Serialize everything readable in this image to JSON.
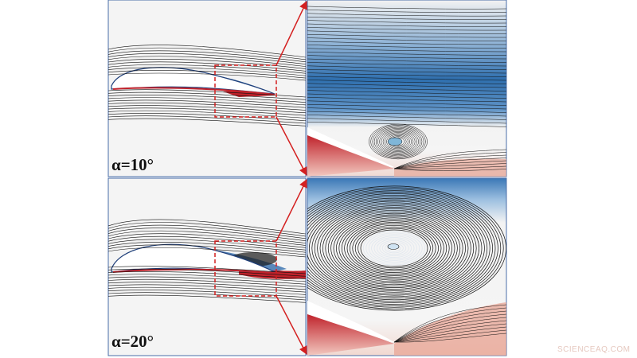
{
  "panels": [
    {
      "label": "α=10°"
    },
    {
      "label": "α=20°"
    }
  ],
  "watermark": "SCIENCEAQ.COM"
}
